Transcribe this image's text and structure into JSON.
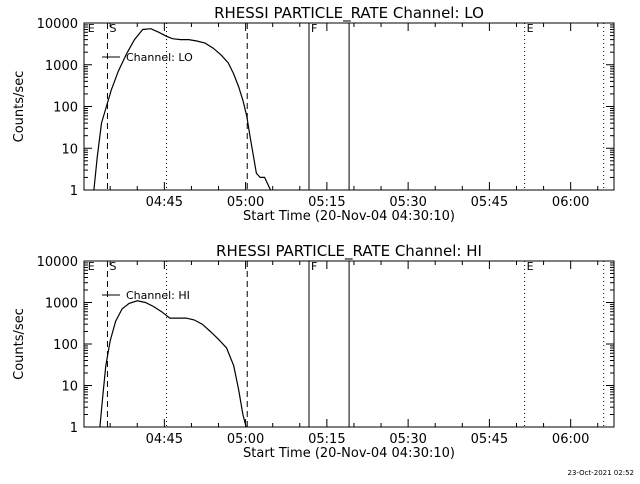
{
  "footer": {
    "timestamp": "23-Oct-2021 02:52"
  },
  "chart_data": [
    {
      "type": "line",
      "title": "RHESSI PARTICLE_RATE Channel: LO",
      "xlabel": "Start Time (20-Nov-04 04:30:10)",
      "ylabel": "Counts/sec",
      "yscale": "log",
      "ylim": [
        1,
        10000
      ],
      "xlim_minutes_from_0430": [
        0.17,
        98
      ],
      "x_tick_labels": [
        "04:45",
        "05:00",
        "05:15",
        "05:30",
        "05:45",
        "06:00"
      ],
      "x_tick_minutes": [
        15,
        30,
        45,
        60,
        75,
        90
      ],
      "y_tick_labels": [
        "1",
        "10",
        "100",
        "1000",
        "10000"
      ],
      "y_tick_values": [
        1,
        10,
        100,
        1000,
        10000
      ],
      "grid": false,
      "legend": {
        "label": "Channel: LO",
        "placement": "top-left"
      },
      "markers": [
        {
          "label": "E",
          "minute": 0.5,
          "style": "none"
        },
        {
          "label": "S",
          "minute": 4.5,
          "style": "dashed"
        },
        {
          "label": "",
          "minute": 30.3,
          "style": "dashed"
        },
        {
          "label": "F",
          "minute": 41.7,
          "style": "solid"
        },
        {
          "label": "",
          "minute": 49.1,
          "style": "solid"
        },
        {
          "label": "",
          "minute": 15.4,
          "style": "dotted"
        },
        {
          "label": "E",
          "minute": 81.5,
          "style": "dotted"
        },
        {
          "label": "",
          "minute": 96.1,
          "style": "dotted"
        }
      ],
      "series": [
        {
          "name": "Channel: LO",
          "x": [
            2.0,
            2.6,
            3.4,
            4.3,
            5.2,
            6.5,
            8.0,
            9.5,
            11.0,
            12.5,
            14.0,
            15.4,
            16.5,
            18.0,
            19.5,
            21.0,
            22.5,
            24.0,
            25.5,
            26.8,
            27.8,
            28.7,
            29.5,
            30.2,
            30.8,
            31.4,
            32.0,
            32.7,
            33.5,
            34.6
          ],
          "y": [
            1,
            6,
            40,
            100,
            250,
            700,
            1800,
            4000,
            7000,
            7300,
            6000,
            4800,
            4200,
            4000,
            4000,
            3700,
            3300,
            2500,
            1700,
            1100,
            600,
            300,
            140,
            60,
            20,
            7,
            2.5,
            2,
            2,
            1
          ]
        }
      ]
    },
    {
      "type": "line",
      "title": "RHESSI PARTICLE_RATE Channel: HI",
      "xlabel": "Start Time (20-Nov-04 04:30:10)",
      "ylabel": "Counts/sec",
      "yscale": "log",
      "ylim": [
        1,
        10000
      ],
      "xlim_minutes_from_0430": [
        0.17,
        98
      ],
      "x_tick_labels": [
        "04:45",
        "05:00",
        "05:15",
        "05:30",
        "05:45",
        "06:00"
      ],
      "x_tick_minutes": [
        15,
        30,
        45,
        60,
        75,
        90
      ],
      "y_tick_labels": [
        "1",
        "10",
        "100",
        "1000",
        "10000"
      ],
      "y_tick_values": [
        1,
        10,
        100,
        1000,
        10000
      ],
      "grid": false,
      "legend": {
        "label": "Channel: HI",
        "placement": "top-left"
      },
      "markers": [
        {
          "label": "E",
          "minute": 0.5,
          "style": "none"
        },
        {
          "label": "S",
          "minute": 4.5,
          "style": "dashed"
        },
        {
          "label": "",
          "minute": 30.3,
          "style": "dashed"
        },
        {
          "label": "F",
          "minute": 41.7,
          "style": "solid"
        },
        {
          "label": "",
          "minute": 49.1,
          "style": "solid"
        },
        {
          "label": "",
          "minute": 15.4,
          "style": "dotted"
        },
        {
          "label": "E",
          "minute": 81.5,
          "style": "dotted"
        },
        {
          "label": "",
          "minute": 96.1,
          "style": "dotted"
        }
      ],
      "series": [
        {
          "name": "Channel: HI",
          "x": [
            3.1,
            3.6,
            4.2,
            5.0,
            6.0,
            7.2,
            8.5,
            10.0,
            11.5,
            13.0,
            14.5,
            16.0,
            17.5,
            19.0,
            20.5,
            22.0,
            23.5,
            25.0,
            26.5,
            27.8,
            28.7,
            29.5,
            30.1
          ],
          "y": [
            1,
            5,
            30,
            120,
            350,
            700,
            950,
            1100,
            1000,
            800,
            600,
            420,
            420,
            420,
            380,
            300,
            200,
            130,
            80,
            30,
            8,
            2,
            1
          ]
        }
      ]
    }
  ]
}
